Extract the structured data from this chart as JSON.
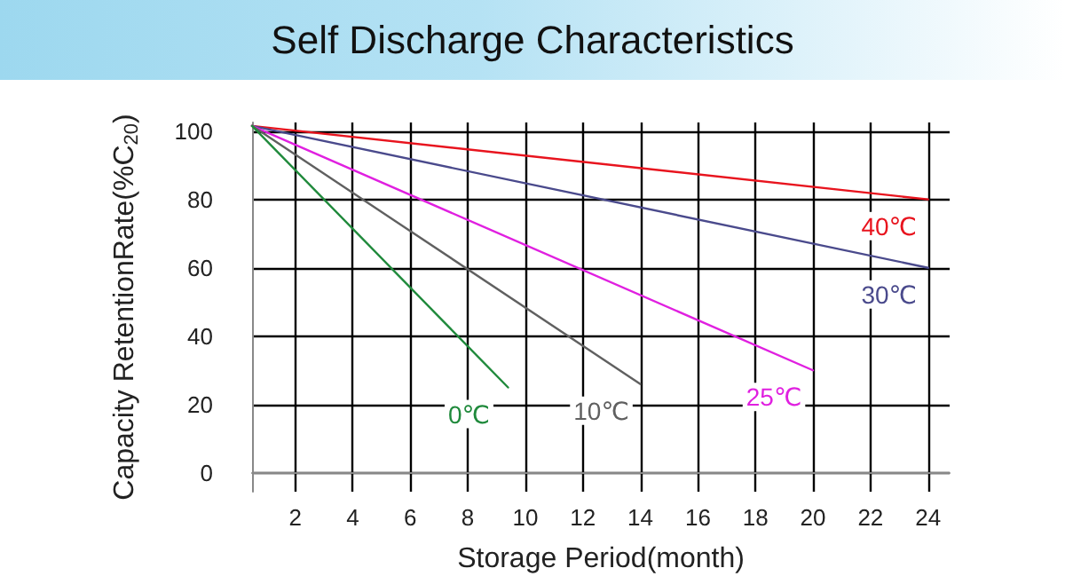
{
  "chart_data": {
    "type": "line",
    "title": "Self Discharge Characteristics",
    "xlabel": "Storage Period(month)",
    "ylabel": "Capacity RetentionRate(%C$_{20}$)",
    "xlim": [
      0.5,
      24.75
    ],
    "xticks": [
      2,
      4,
      6,
      8,
      10,
      12,
      14,
      16,
      18,
      20,
      22,
      24
    ],
    "ylim": [
      -5.5,
      102.5
    ],
    "yticks": [
      0,
      20,
      40,
      60,
      80,
      100
    ],
    "grid": true,
    "marker": "none",
    "line_style": "solid",
    "series": [
      {
        "color": "#e8141e",
        "x": [
          0.5,
          24
        ],
        "values": [
          101.5,
          80
        ]
      },
      {
        "color": "#4a4a8c",
        "x": [
          0.5,
          24
        ],
        "values": [
          101.5,
          60
        ]
      },
      {
        "color": "#e020e0",
        "x": [
          0.5,
          20
        ],
        "values": [
          101.5,
          30
        ]
      },
      {
        "color": "#606060",
        "x": [
          0.5,
          14
        ],
        "values": [
          101.5,
          26
        ]
      },
      {
        "color": "#208a3c",
        "x": [
          0.5,
          9.4
        ],
        "values": [
          101.5,
          25
        ]
      }
    ],
    "annotations": [
      {
        "text": "40℃",
        "x": 24,
        "y": 80
      },
      {
        "text": "30℃",
        "x": 24,
        "y": 60
      },
      {
        "text": "25℃",
        "x": 20,
        "y": 30
      },
      {
        "text": "10℃",
        "x": 14,
        "y": 26
      },
      {
        "text": "0℃",
        "x": 9.4,
        "y": 25
      }
    ]
  }
}
